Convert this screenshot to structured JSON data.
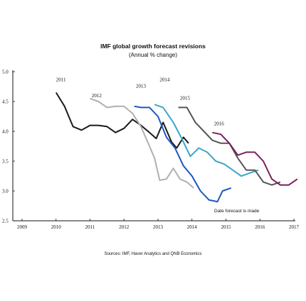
{
  "chart_data": {
    "type": "line",
    "title": "IMF global growth forecast revisions",
    "subtitle": "(Annual % change)",
    "xlabel": "",
    "ylabel": "",
    "xlim": [
      2009,
      2017
    ],
    "ylim": [
      2.5,
      5.0
    ],
    "x_ticks": [
      "2009",
      "2010",
      "2011",
      "2012",
      "2013",
      "2014",
      "2015",
      "2016",
      "2017"
    ],
    "y_ticks": [
      "5.0",
      "4.5",
      "4.0",
      "3.5",
      "3.0",
      "2.5"
    ],
    "annotation": "Date forecast is made",
    "grid": false,
    "legend": "none",
    "series": [
      {
        "name": "2011",
        "color": "#1a1a1a",
        "points": [
          [
            2010.0,
            4.65
          ],
          [
            2010.25,
            4.42
          ],
          [
            2010.5,
            4.08
          ],
          [
            2010.75,
            4.02
          ],
          [
            2011.0,
            4.1
          ],
          [
            2011.25,
            4.1
          ],
          [
            2011.5,
            4.08
          ],
          [
            2011.75,
            3.98
          ],
          [
            2012.0,
            4.05
          ],
          [
            2012.25,
            4.2
          ],
          [
            2012.5,
            4.1
          ],
          [
            2012.75,
            3.98
          ],
          [
            2012.95,
            3.88
          ],
          [
            2013.15,
            4.15
          ],
          [
            2013.4,
            3.82
          ],
          [
            2013.55,
            3.72
          ],
          [
            2013.75,
            3.9
          ],
          [
            2013.9,
            3.8
          ]
        ]
      },
      {
        "name": "2012",
        "color": "#b0b0b0",
        "points": [
          [
            2011.0,
            4.55
          ],
          [
            2011.25,
            4.5
          ],
          [
            2011.5,
            4.4
          ],
          [
            2011.75,
            4.42
          ],
          [
            2012.0,
            4.42
          ],
          [
            2012.25,
            4.3
          ],
          [
            2012.5,
            4.08
          ],
          [
            2012.75,
            3.75
          ],
          [
            2012.9,
            3.55
          ],
          [
            2013.05,
            3.18
          ],
          [
            2013.25,
            3.2
          ],
          [
            2013.45,
            3.38
          ],
          [
            2013.65,
            3.2
          ],
          [
            2013.85,
            3.15
          ],
          [
            2014.05,
            3.05
          ]
        ]
      },
      {
        "name": "2013",
        "color": "#1f55c0",
        "points": [
          [
            2012.3,
            4.42
          ],
          [
            2012.5,
            4.4
          ],
          [
            2012.75,
            4.4
          ],
          [
            2013.0,
            4.25
          ],
          [
            2013.25,
            3.9
          ],
          [
            2013.5,
            3.72
          ],
          [
            2013.75,
            3.42
          ],
          [
            2014.0,
            3.25
          ],
          [
            2014.25,
            3.0
          ],
          [
            2014.5,
            2.85
          ],
          [
            2014.75,
            2.82
          ],
          [
            2014.9,
            3.0
          ],
          [
            2015.15,
            3.05
          ]
        ]
      },
      {
        "name": "2014",
        "color": "#3aa7c9",
        "points": [
          [
            2012.9,
            4.45
          ],
          [
            2013.15,
            4.4
          ],
          [
            2013.45,
            4.15
          ],
          [
            2013.7,
            3.88
          ],
          [
            2013.95,
            3.58
          ],
          [
            2014.2,
            3.72
          ],
          [
            2014.45,
            3.65
          ],
          [
            2014.7,
            3.5
          ],
          [
            2014.95,
            3.45
          ],
          [
            2015.2,
            3.35
          ],
          [
            2015.45,
            3.25
          ],
          [
            2015.7,
            3.3
          ],
          [
            2015.95,
            3.35
          ]
        ]
      },
      {
        "name": "2015",
        "color": "#555555",
        "points": [
          [
            2013.6,
            4.4
          ],
          [
            2013.85,
            4.4
          ],
          [
            2014.1,
            4.15
          ],
          [
            2014.35,
            4.0
          ],
          [
            2014.6,
            3.85
          ],
          [
            2014.85,
            3.8
          ],
          [
            2015.1,
            3.8
          ],
          [
            2015.35,
            3.55
          ],
          [
            2015.6,
            3.35
          ],
          [
            2015.85,
            3.35
          ],
          [
            2016.1,
            3.15
          ],
          [
            2016.35,
            3.1
          ],
          [
            2016.6,
            3.15
          ]
        ]
      },
      {
        "name": "2016",
        "color": "#7a1f5e",
        "points": [
          [
            2014.6,
            3.98
          ],
          [
            2014.85,
            3.95
          ],
          [
            2015.1,
            3.8
          ],
          [
            2015.35,
            3.6
          ],
          [
            2015.6,
            3.65
          ],
          [
            2015.85,
            3.65
          ],
          [
            2016.1,
            3.5
          ],
          [
            2016.35,
            3.2
          ],
          [
            2016.6,
            3.1
          ],
          [
            2016.85,
            3.1
          ],
          [
            2017.1,
            3.2
          ]
        ]
      }
    ],
    "series_labels": [
      {
        "text": "2011",
        "x": 2010.0,
        "y": 4.84
      },
      {
        "text": "2012",
        "x": 2011.05,
        "y": 4.57
      },
      {
        "text": "2013",
        "x": 2012.35,
        "y": 4.73
      },
      {
        "text": "2014",
        "x": 2013.05,
        "y": 4.84
      },
      {
        "text": "2015",
        "x": 2013.65,
        "y": 4.53
      },
      {
        "text": "2016",
        "x": 2014.65,
        "y": 4.1
      }
    ]
  },
  "source": "Sources: IMF, Haver Analytics and QNB Economics"
}
